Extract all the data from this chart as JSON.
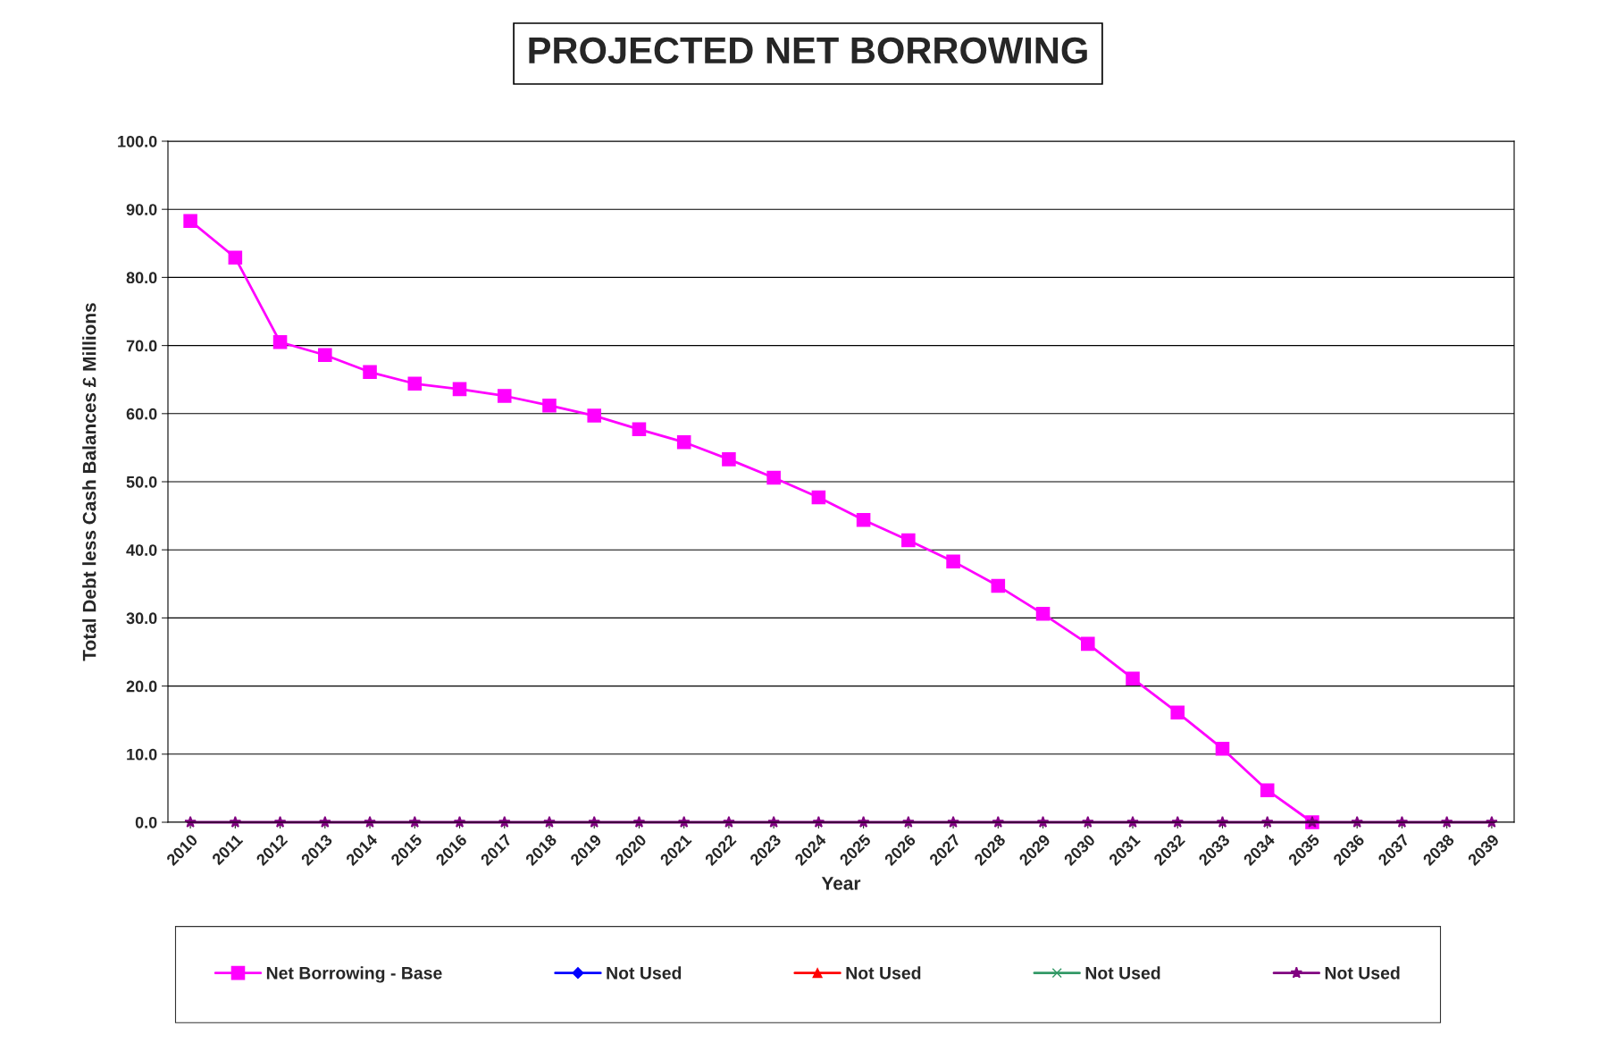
{
  "chart_data": {
    "type": "line",
    "title": "PROJECTED NET BORROWING",
    "xlabel": "Year",
    "ylabel": "Total Debt less Cash Balances £ Millions",
    "categories": [
      "2010",
      "2011",
      "2012",
      "2013",
      "2014",
      "2015",
      "2016",
      "2017",
      "2018",
      "2019",
      "2020",
      "2021",
      "2022",
      "2023",
      "2024",
      "2025",
      "2026",
      "2027",
      "2028",
      "2029",
      "2030",
      "2031",
      "2032",
      "2033",
      "2034",
      "2035",
      "2036",
      "2037",
      "2038",
      "2039"
    ],
    "series": [
      {
        "name": "Net Borrowing - Base",
        "color": "#ff00ff",
        "marker": "square",
        "values": [
          88.3,
          82.9,
          70.5,
          68.6,
          66.1,
          64.4,
          63.6,
          62.6,
          61.2,
          59.7,
          57.7,
          55.8,
          53.3,
          50.6,
          47.7,
          44.4,
          41.4,
          38.3,
          34.7,
          30.6,
          26.2,
          21.1,
          16.1,
          10.8,
          4.7,
          0,
          null,
          null,
          null,
          null
        ]
      },
      {
        "name": "Not Used",
        "color": "#0000ff",
        "marker": "diamond",
        "values": [
          null,
          null,
          null,
          null,
          null,
          null,
          null,
          null,
          null,
          null,
          null,
          null,
          null,
          null,
          null,
          null,
          null,
          null,
          null,
          null,
          null,
          null,
          null,
          null,
          null,
          null,
          null,
          null,
          null,
          null
        ]
      },
      {
        "name": "Not Used",
        "color": "#ff0000",
        "marker": "triangle",
        "values": [
          null,
          null,
          null,
          null,
          null,
          null,
          null,
          null,
          null,
          null,
          null,
          null,
          null,
          null,
          null,
          null,
          null,
          null,
          null,
          null,
          null,
          null,
          null,
          null,
          null,
          null,
          null,
          null,
          null,
          null
        ]
      },
      {
        "name": "Not Used",
        "color": "#339966",
        "marker": "cross",
        "values": [
          null,
          null,
          null,
          null,
          null,
          null,
          null,
          null,
          null,
          null,
          null,
          null,
          null,
          null,
          null,
          null,
          null,
          null,
          null,
          null,
          null,
          null,
          null,
          null,
          null,
          null,
          null,
          null,
          null,
          null
        ]
      },
      {
        "name": "Not Used",
        "color": "#800080",
        "marker": "star",
        "values": [
          0,
          0,
          0,
          0,
          0,
          0,
          0,
          0,
          0,
          0,
          0,
          0,
          0,
          0,
          0,
          0,
          0,
          0,
          0,
          0,
          0,
          0,
          0,
          0,
          0,
          0,
          0,
          0,
          0,
          0
        ]
      }
    ],
    "ylim": [
      0,
      100
    ],
    "yticks": [
      {
        "value": 0,
        "label": "0.0"
      },
      {
        "value": 10,
        "label": "10.0"
      },
      {
        "value": 20,
        "label": "20.0"
      },
      {
        "value": 30,
        "label": "30.0"
      },
      {
        "value": 40,
        "label": "40.0"
      },
      {
        "value": 50,
        "label": "50.0"
      },
      {
        "value": 60,
        "label": "60.0"
      },
      {
        "value": 70,
        "label": "70.0"
      },
      {
        "value": 80,
        "label": "80.0"
      },
      {
        "value": 90,
        "label": "90.0"
      },
      {
        "value": 100,
        "label": "100.0"
      }
    ],
    "grid": "y",
    "legend": "bottom",
    "line_style": "solid"
  }
}
